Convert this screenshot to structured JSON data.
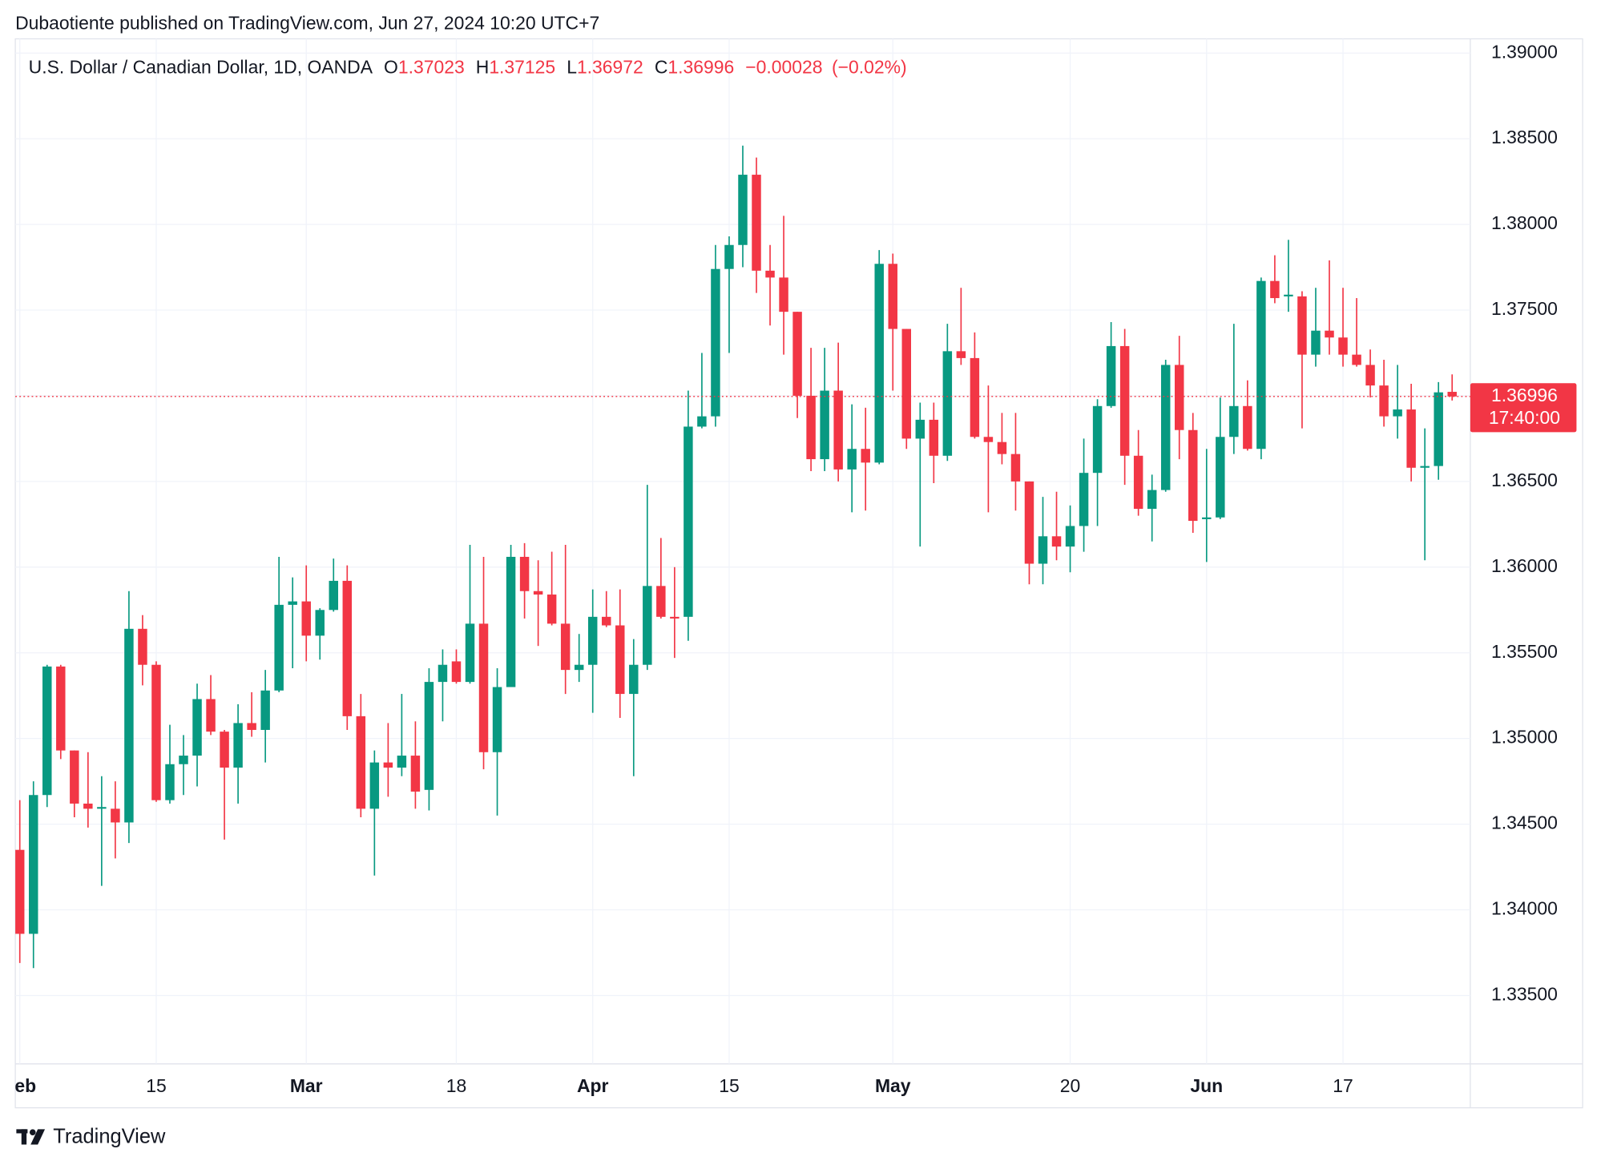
{
  "header": {
    "publisher": "Dubaotiente published on TradingView.com, Jun 27, 2024 10:20 UTC+7"
  },
  "footer": {
    "brand": "TradingView"
  },
  "chart_data": {
    "type": "candlestick",
    "symbol": "U.S. Dollar / Canadian Dollar, 1D, OANDA",
    "ohlc_labels": [
      "O",
      "H",
      "L",
      "C"
    ],
    "change": {
      "value": -0.00028,
      "label": "−0.00028"
    },
    "change_pct": {
      "value": -0.02,
      "label": "(−0.02%)"
    },
    "countdown": "17:40:00",
    "up_color": "#089981",
    "down_color": "#f23645",
    "grid": true,
    "ylim": [
      1.33101,
      1.39083
    ],
    "yticks": [
      {
        "value": 1.335,
        "label": "1.33500"
      },
      {
        "value": 1.34,
        "label": "1.34000"
      },
      {
        "value": 1.345,
        "label": "1.34500"
      },
      {
        "value": 1.35,
        "label": "1.35000"
      },
      {
        "value": 1.355,
        "label": "1.35500"
      },
      {
        "value": 1.36,
        "label": "1.36000"
      },
      {
        "value": 1.365,
        "label": "1.36500"
      },
      {
        "value": 1.37,
        "label": "1.37000"
      },
      {
        "value": 1.375,
        "label": "1.37500"
      },
      {
        "value": 1.38,
        "label": "1.38000"
      },
      {
        "value": 1.385,
        "label": "1.38500"
      },
      {
        "value": 1.39,
        "label": "1.39000"
      }
    ],
    "categories": [
      "Feb",
      null,
      null,
      null,
      null,
      null,
      null,
      null,
      null,
      null,
      "15",
      null,
      null,
      null,
      null,
      null,
      null,
      null,
      null,
      null,
      null,
      "Mar",
      null,
      null,
      null,
      null,
      null,
      null,
      null,
      null,
      null,
      null,
      "18",
      null,
      null,
      null,
      null,
      null,
      null,
      null,
      null,
      null,
      "Apr",
      null,
      null,
      null,
      null,
      null,
      null,
      null,
      null,
      null,
      "15",
      null,
      null,
      null,
      null,
      null,
      null,
      null,
      null,
      null,
      null,
      null,
      "May",
      null,
      null,
      null,
      null,
      null,
      null,
      null,
      null,
      null,
      null,
      null,
      null,
      "20",
      null,
      null,
      null,
      null,
      null,
      null,
      null,
      null,
      null,
      "Jun",
      null,
      null,
      null,
      null,
      null,
      null,
      null,
      null,
      null,
      "17",
      null,
      null,
      null,
      null,
      null,
      null,
      null,
      null
    ],
    "open": [
      1.3435,
      1.3386,
      1.3467,
      1.3542,
      1.3493,
      1.3462,
      1.3459,
      1.3459,
      1.3451,
      1.3564,
      1.3543,
      1.3464,
      1.3485,
      1.349,
      1.3523,
      1.3504,
      1.3483,
      1.3509,
      1.3505,
      1.3528,
      1.3578,
      1.358,
      1.356,
      1.3575,
      1.3592,
      1.3513,
      1.3459,
      1.3486,
      1.3483,
      1.349,
      1.347,
      1.3533,
      1.3545,
      1.3533,
      1.3567,
      1.3492,
      1.353,
      1.3606,
      1.3586,
      1.3584,
      1.3567,
      1.354,
      1.3543,
      1.3571,
      1.3566,
      1.3526,
      1.3543,
      1.3589,
      1.3571,
      1.3571,
      1.3682,
      1.3688,
      1.3774,
      1.3788,
      1.3829,
      1.3773,
      1.3769,
      1.3749,
      1.37,
      1.3663,
      1.3703,
      1.3657,
      1.3669,
      1.3661,
      1.3777,
      1.3739,
      1.3675,
      1.3686,
      1.3665,
      1.3726,
      1.3722,
      1.3676,
      1.3673,
      1.3666,
      1.365,
      1.3602,
      1.3618,
      1.3612,
      1.3624,
      1.3655,
      1.3694,
      1.3729,
      1.3665,
      1.3634,
      1.3645,
      1.3718,
      1.368,
      1.3628,
      1.3629,
      1.3676,
      1.3694,
      1.3669,
      1.3767,
      1.3758,
      1.3758,
      1.3724,
      1.3738,
      1.3734,
      1.3724,
      1.3718,
      1.3706,
      1.3688,
      1.3692,
      1.3658,
      1.3659,
      1.37023
    ],
    "high": [
      1.3464,
      1.3475,
      1.3543,
      1.3543,
      1.3493,
      1.3492,
      1.3478,
      1.3475,
      1.3586,
      1.3572,
      1.3545,
      1.3508,
      1.3502,
      1.3532,
      1.3537,
      1.3505,
      1.352,
      1.3527,
      1.354,
      1.3606,
      1.3594,
      1.3601,
      1.3576,
      1.3605,
      1.3601,
      1.3526,
      1.3493,
      1.3509,
      1.3526,
      1.351,
      1.3541,
      1.3552,
      1.3552,
      1.3613,
      1.3606,
      1.3541,
      1.3613,
      1.3614,
      1.3604,
      1.3609,
      1.3613,
      1.3561,
      1.3587,
      1.3586,
      1.3587,
      1.3558,
      1.3648,
      1.3617,
      1.36,
      1.3703,
      1.3725,
      1.3788,
      1.3793,
      1.3846,
      1.3839,
      1.3788,
      1.3805,
      1.3749,
      1.3728,
      1.3728,
      1.3731,
      1.3695,
      1.3693,
      1.3785,
      1.3783,
      1.3739,
      1.3696,
      1.3696,
      1.3742,
      1.3763,
      1.3737,
      1.3706,
      1.369,
      1.369,
      1.365,
      1.3641,
      1.3644,
      1.3636,
      1.3675,
      1.3698,
      1.3743,
      1.3739,
      1.368,
      1.3654,
      1.3721,
      1.3735,
      1.369,
      1.3669,
      1.3699,
      1.3742,
      1.3709,
      1.3769,
      1.3782,
      1.3791,
      1.3761,
      1.3763,
      1.3779,
      1.3763,
      1.3757,
      1.3727,
      1.3721,
      1.3718,
      1.3707,
      1.3681,
      1.3708,
      1.37125
    ],
    "low": [
      1.3369,
      1.3366,
      1.346,
      1.3488,
      1.3454,
      1.3448,
      1.3414,
      1.343,
      1.3439,
      1.3531,
      1.3463,
      1.3462,
      1.3467,
      1.3472,
      1.3502,
      1.3441,
      1.3462,
      1.3501,
      1.3486,
      1.3527,
      1.3541,
      1.3545,
      1.3546,
      1.3574,
      1.3505,
      1.3454,
      1.342,
      1.3466,
      1.3478,
      1.3459,
      1.3458,
      1.351,
      1.3532,
      1.3532,
      1.3482,
      1.3455,
      1.353,
      1.357,
      1.3554,
      1.3566,
      1.3526,
      1.3533,
      1.3515,
      1.3565,
      1.3512,
      1.3478,
      1.354,
      1.357,
      1.3547,
      1.3557,
      1.3681,
      1.3682,
      1.3725,
      1.3775,
      1.376,
      1.3741,
      1.3724,
      1.3687,
      1.3656,
      1.3656,
      1.365,
      1.3632,
      1.3633,
      1.366,
      1.3703,
      1.3669,
      1.3612,
      1.3649,
      1.3662,
      1.3718,
      1.3675,
      1.3632,
      1.366,
      1.3633,
      1.359,
      1.359,
      1.3604,
      1.3597,
      1.3609,
      1.3624,
      1.3693,
      1.3648,
      1.363,
      1.3615,
      1.3644,
      1.3663,
      1.362,
      1.3603,
      1.3628,
      1.3666,
      1.3668,
      1.3663,
      1.3754,
      1.3749,
      1.3681,
      1.3717,
      1.3724,
      1.3717,
      1.3717,
      1.3699,
      1.3682,
      1.3675,
      1.365,
      1.3604,
      1.3651,
      1.36972
    ],
    "close": [
      1.3386,
      1.3467,
      1.3542,
      1.3493,
      1.3462,
      1.3459,
      1.346,
      1.3451,
      1.3564,
      1.3543,
      1.3464,
      1.3485,
      1.349,
      1.3523,
      1.3504,
      1.3483,
      1.3509,
      1.3505,
      1.3528,
      1.3578,
      1.358,
      1.356,
      1.3575,
      1.3592,
      1.3513,
      1.3459,
      1.3486,
      1.3483,
      1.349,
      1.3469,
      1.3533,
      1.3543,
      1.3533,
      1.3567,
      1.3492,
      1.353,
      1.3606,
      1.3586,
      1.3584,
      1.3567,
      1.354,
      1.3543,
      1.3571,
      1.3566,
      1.3526,
      1.3543,
      1.3589,
      1.3571,
      1.357,
      1.3682,
      1.3688,
      1.3774,
      1.3788,
      1.3829,
      1.3773,
      1.3769,
      1.3749,
      1.37,
      1.3663,
      1.3703,
      1.3657,
      1.3669,
      1.3661,
      1.3777,
      1.3739,
      1.3675,
      1.3686,
      1.3665,
      1.3726,
      1.3722,
      1.3676,
      1.3673,
      1.3666,
      1.365,
      1.3602,
      1.3618,
      1.3612,
      1.3624,
      1.3655,
      1.3694,
      1.3729,
      1.3665,
      1.3634,
      1.3645,
      1.3718,
      1.368,
      1.3627,
      1.3629,
      1.3676,
      1.3694,
      1.3669,
      1.3767,
      1.3757,
      1.3759,
      1.3724,
      1.3738,
      1.3734,
      1.3724,
      1.3718,
      1.3706,
      1.3688,
      1.3692,
      1.3658,
      1.3659,
      1.3702,
      1.36996
    ]
  }
}
